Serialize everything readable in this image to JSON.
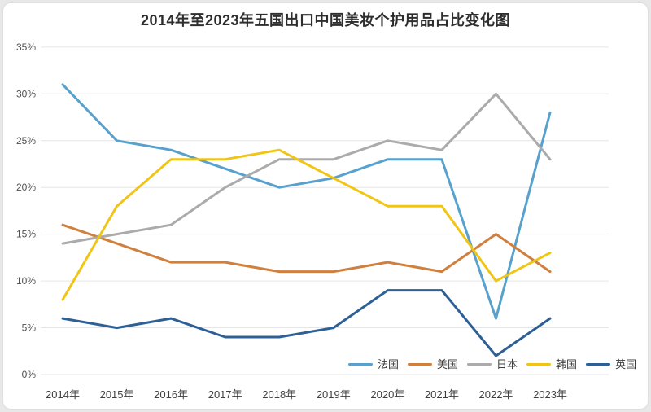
{
  "title": "2014年至2023年五国出口中国美妆个护用品占比变化图",
  "colors": {
    "background": "#e8e8e8",
    "card": "#ffffff",
    "grid": "#e6e6e6",
    "title_text": "#2e2e2e",
    "axis_text": "#4f4f4f"
  },
  "chart_data": {
    "type": "line",
    "title": "2014年至2023年五国出口中国美妆个护用品占比变化图",
    "xlabel": "",
    "ylabel": "",
    "grid": "horizontal",
    "legend_position": "bottom-right",
    "ylim": [
      0,
      35
    ],
    "yticks": [
      0,
      5,
      10,
      15,
      20,
      25,
      30,
      35
    ],
    "ytick_labels": [
      "0%",
      "5%",
      "10%",
      "15%",
      "20%",
      "25%",
      "30%",
      "35%"
    ],
    "categories": [
      "2014年",
      "2015年",
      "2016年",
      "2017年",
      "2018年",
      "2019年",
      "2020年",
      "2021年",
      "2022年",
      "2023年"
    ],
    "series": [
      {
        "id": "france",
        "label": "法国",
        "color": "#58A1CD",
        "values": [
          31,
          25,
          24,
          22,
          20,
          21,
          23,
          23,
          6,
          28
        ]
      },
      {
        "id": "usa",
        "label": "美国",
        "color": "#D0803E",
        "values": [
          16,
          14,
          12,
          12,
          11,
          11,
          12,
          11,
          15,
          11
        ]
      },
      {
        "id": "japan",
        "label": "日本",
        "color": "#ABABAB",
        "values": [
          14,
          15,
          16,
          20,
          23,
          23,
          25,
          24,
          30,
          23
        ]
      },
      {
        "id": "korea",
        "label": "韩国",
        "color": "#F0C516",
        "values": [
          8,
          18,
          23,
          23,
          24,
          21,
          18,
          18,
          10,
          13
        ]
      },
      {
        "id": "uk",
        "label": "英国",
        "color": "#2E6095",
        "values": [
          6,
          5,
          6,
          4,
          4,
          5,
          9,
          9,
          2,
          6
        ]
      }
    ]
  }
}
